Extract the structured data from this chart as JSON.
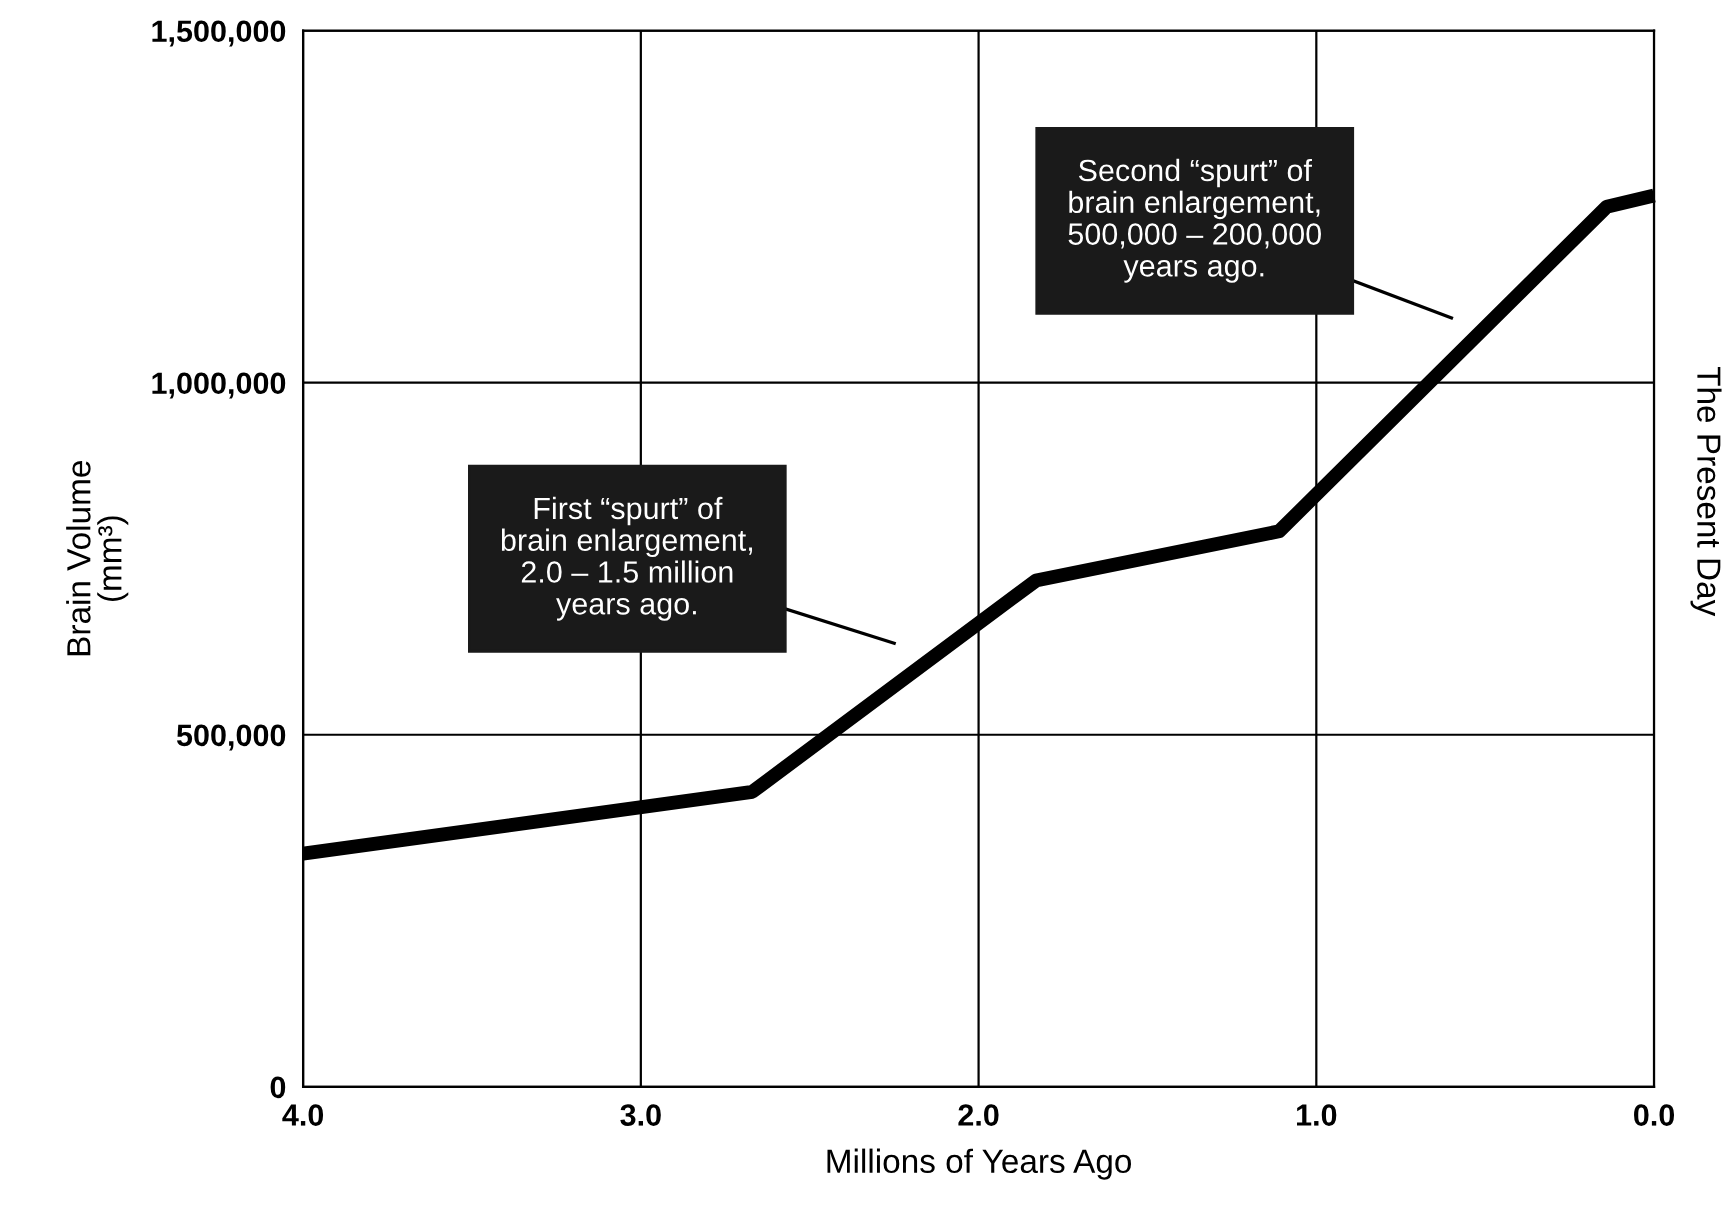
{
  "chart_data": {
    "type": "line",
    "xlabel": "Millions of Years Ago",
    "ylabel": "Brain Volume\n(mm³)",
    "x": [
      4.0,
      2.67,
      1.83,
      1.11,
      0.14,
      0.0
    ],
    "series": [
      {
        "color": "#000000",
        "values": [
          331000,
          419000,
          719000,
          789000,
          1250000,
          1266000
        ]
      }
    ],
    "xlim": [
      4.0,
      0.0
    ],
    "xticks": [
      {
        "value": 4,
        "label": "4.0"
      },
      {
        "value": 3,
        "label": "3.0"
      },
      {
        "value": 2,
        "label": "2.0"
      },
      {
        "value": 1,
        "label": "1.0"
      },
      {
        "value": 0,
        "label": "0.0"
      }
    ],
    "ylim": [
      0,
      1500000
    ],
    "yticks": [
      {
        "value": 0,
        "label": "0"
      },
      {
        "value": 500000,
        "label": "500,000"
      },
      {
        "value": 1000000,
        "label": "1,000,000"
      },
      {
        "value": 1500000,
        "label": "1,500,000"
      }
    ],
    "grid": true,
    "marker": "none",
    "line_style": "solid",
    "annotations": [
      "First “spurt” of\nbrain enlargement,\n2.0 – 1.5 million\nyears ago.",
      "Second “spurt” of\nbrain enlargement,\n500,000 – 200,000\nyears ago.",
      "The Present Day"
    ]
  }
}
